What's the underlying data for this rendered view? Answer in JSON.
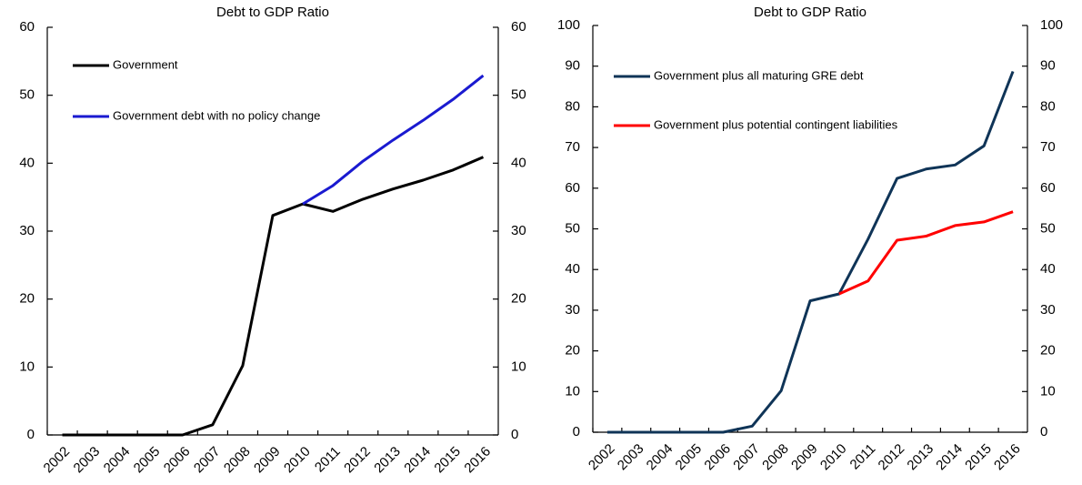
{
  "chart_data": [
    {
      "type": "line",
      "title": "Debt to GDP Ratio",
      "categories": [
        "2002",
        "2003",
        "2004",
        "2005",
        "2006",
        "2007",
        "2008",
        "2009",
        "2010",
        "2011",
        "2012",
        "2013",
        "2014",
        "2015",
        "2016"
      ],
      "series": [
        {
          "name": "Government",
          "color": "#000000",
          "values": [
            0,
            0,
            0,
            0,
            0,
            1.5,
            10.2,
            32.3,
            34,
            32.9,
            34.7,
            36.2,
            37.5,
            39,
            40.9
          ]
        },
        {
          "name": "Government  debt with no policy change",
          "color": "#1a1ad0",
          "values": [
            null,
            null,
            null,
            null,
            null,
            null,
            null,
            null,
            34,
            36.7,
            40.3,
            43.4,
            46.3,
            49.4,
            52.9
          ]
        }
      ],
      "ylim": [
        0,
        60
      ],
      "yticks": [
        0,
        10,
        20,
        30,
        40,
        50,
        60
      ],
      "y2lim": [
        0,
        60
      ],
      "y2ticks": [
        0,
        10,
        20,
        30,
        40,
        50,
        60
      ],
      "legend": "upper left"
    },
    {
      "type": "line",
      "title": "Debt to GDP Ratio",
      "categories": [
        "2002",
        "2003",
        "2004",
        "2005",
        "2006",
        "2007",
        "2008",
        "2009",
        "2010",
        "2011",
        "2012",
        "2013",
        "2014",
        "2015",
        "2016"
      ],
      "series": [
        {
          "name": "Government plus all maturing GRE debt",
          "color": "#0f3457",
          "values": [
            0,
            0,
            0,
            0,
            0,
            1.5,
            10.2,
            32.3,
            34,
            47.5,
            62.4,
            64.7,
            65.7,
            70.4,
            88.7
          ]
        },
        {
          "name": "Government plus potential contingent liabilities",
          "color": "#ff0000",
          "values": [
            null,
            null,
            null,
            null,
            null,
            null,
            null,
            null,
            34,
            37.2,
            47.2,
            48.2,
            50.8,
            51.7,
            54.2
          ]
        }
      ],
      "ylim": [
        0,
        100
      ],
      "yticks": [
        0,
        10,
        20,
        30,
        40,
        50,
        60,
        70,
        80,
        90,
        100
      ],
      "y2lim": [
        0,
        100
      ],
      "y2ticks": [
        0,
        10,
        20,
        30,
        40,
        50,
        60,
        70,
        80,
        90,
        100
      ],
      "legend": "upper left"
    }
  ]
}
